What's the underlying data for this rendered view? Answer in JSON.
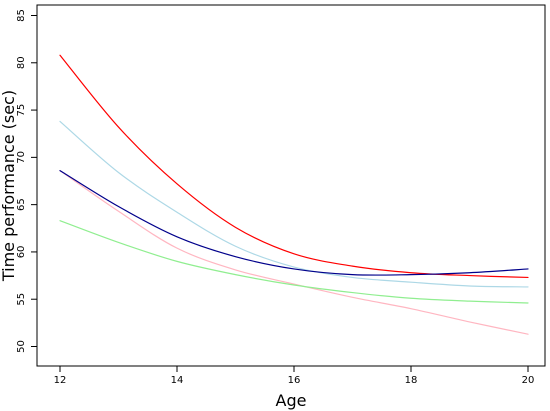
{
  "chart_data": {
    "type": "line",
    "title": "",
    "xlabel": "Age",
    "ylabel": "Time  performance (sec)",
    "xlim": [
      12,
      20
    ],
    "ylim": [
      50,
      85
    ],
    "x_ticks": [
      12,
      14,
      16,
      18,
      20
    ],
    "y_ticks": [
      50,
      55,
      60,
      65,
      70,
      75,
      80,
      85
    ],
    "grid": false,
    "legend": "none",
    "series": [
      {
        "color": "#ff0000",
        "x": [
          12,
          13,
          14,
          15,
          16,
          17,
          18,
          19,
          20
        ],
        "y": [
          80.8,
          73.2,
          67.2,
          62.6,
          59.8,
          58.5,
          57.8,
          57.5,
          57.3
        ]
      },
      {
        "color": "#add8e6",
        "x": [
          12,
          13,
          14,
          15,
          16,
          17,
          18,
          19,
          20
        ],
        "y": [
          73.8,
          68.4,
          64.2,
          60.6,
          58.4,
          57.3,
          56.8,
          56.4,
          56.3
        ]
      },
      {
        "color": "#00008b",
        "x": [
          12,
          13,
          14,
          15,
          16,
          17,
          18,
          19,
          20
        ],
        "y": [
          68.6,
          64.8,
          61.6,
          59.5,
          58.2,
          57.6,
          57.6,
          57.8,
          58.2
        ]
      },
      {
        "color": "#ffb6c1",
        "x": [
          12,
          13,
          14,
          15,
          16,
          17,
          18,
          19,
          20
        ],
        "y": [
          68.6,
          64.3,
          60.4,
          58.1,
          56.6,
          55.2,
          54.0,
          52.6,
          51.3
        ]
      },
      {
        "color": "#90ee90",
        "x": [
          12,
          13,
          14,
          15,
          16,
          17,
          18,
          19,
          20
        ],
        "y": [
          63.3,
          61.0,
          59.0,
          57.6,
          56.5,
          55.7,
          55.1,
          54.8,
          54.6
        ]
      }
    ]
  }
}
